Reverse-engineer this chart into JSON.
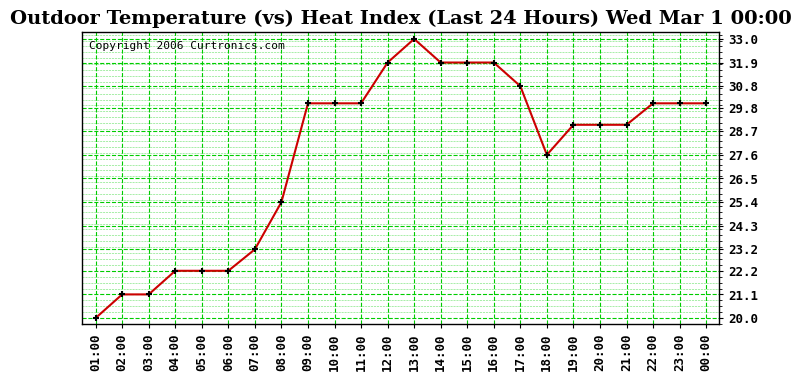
{
  "title": "Outdoor Temperature (vs) Heat Index (Last 24 Hours) Wed Mar 1 00:00",
  "copyright": "Copyright 2006 Curtronics.com",
  "x_labels": [
    "01:00",
    "02:00",
    "03:00",
    "04:00",
    "05:00",
    "06:00",
    "07:00",
    "08:00",
    "09:00",
    "10:00",
    "11:00",
    "12:00",
    "13:00",
    "14:00",
    "15:00",
    "16:00",
    "17:00",
    "18:00",
    "19:00",
    "20:00",
    "21:00",
    "22:00",
    "23:00",
    "00:00"
  ],
  "y_values": [
    20.0,
    21.1,
    21.1,
    22.2,
    22.2,
    22.2,
    23.2,
    25.4,
    30.0,
    30.0,
    30.0,
    31.9,
    33.0,
    31.9,
    31.9,
    31.9,
    30.8,
    27.6,
    29.0,
    29.0,
    29.0,
    30.0,
    30.0,
    30.0
  ],
  "ylim_min": 20.0,
  "ylim_max": 33.0,
  "yticks": [
    20.0,
    21.1,
    22.2,
    23.2,
    24.3,
    25.4,
    26.5,
    27.6,
    28.7,
    29.8,
    30.8,
    31.9,
    33.0
  ],
  "line_color": "#cc0000",
  "marker_color": "#000000",
  "bg_color": "#ffffff",
  "plot_bg_color": "#ffffff",
  "grid_color": "#00cc00",
  "title_fontsize": 14,
  "axis_label_fontsize": 9,
  "copyright_fontsize": 8
}
